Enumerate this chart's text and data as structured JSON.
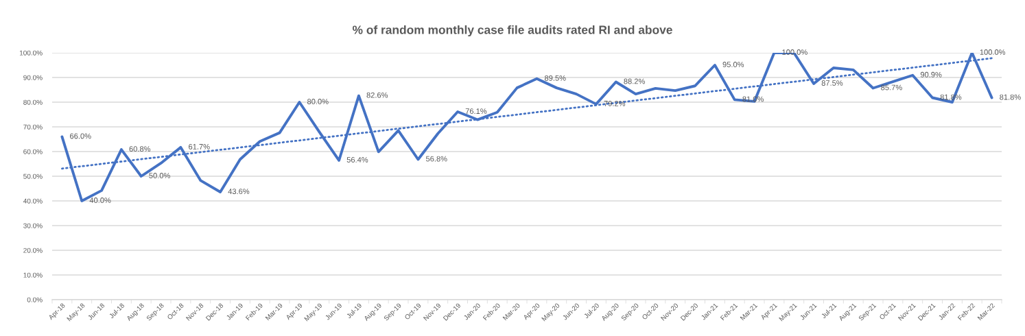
{
  "chart_data": {
    "type": "line",
    "title": "% of random monthly case file audits rated RI and above",
    "categories": [
      "Apr-18",
      "May-18",
      "Jun-18",
      "Jul-18",
      "Aug-18",
      "Sep-18",
      "Oct-18",
      "Nov-18",
      "Dec-18",
      "Jan-19",
      "Feb-19",
      "Mar-19",
      "Apr-19",
      "May-19",
      "Jun-19",
      "Jul-19",
      "Aug-19",
      "Sep-19",
      "Oct-19",
      "Nov-19",
      "Dec-19",
      "Jan-20",
      "Feb-20",
      "Mar-20",
      "Apr-20",
      "May-20",
      "Jun-20",
      "Jul-20",
      "Aug-20",
      "Sep-20",
      "Oct-20",
      "Nov-20",
      "Dec-20",
      "Jan-21",
      "Feb-21",
      "Mar-21",
      "Apr-21",
      "May-21",
      "Jun-21",
      "Jul-21",
      "Aug-21",
      "Sep-21",
      "Oct-21",
      "Nov-21",
      "Dec-21",
      "Jan-22",
      "Feb-22",
      "Mar-22"
    ],
    "series": [
      {
        "color": "#4472c4",
        "line_style": "solid",
        "values": [
          66.0,
          40.0,
          44.2,
          60.8,
          50.0,
          55.3,
          61.7,
          48.3,
          43.6,
          56.8,
          64.1,
          67.6,
          80.0,
          68.0,
          56.4,
          82.6,
          59.9,
          68.5,
          56.8,
          67.3,
          76.1,
          72.9,
          75.9,
          85.8,
          89.5,
          85.8,
          83.3,
          79.2,
          88.2,
          83.3,
          85.6,
          84.7,
          86.6,
          95.0,
          81.0,
          80.3,
          100.0,
          100.0,
          87.5,
          93.9,
          93.1,
          85.7,
          88.3,
          90.9,
          81.8,
          80.0,
          100.0,
          81.8
        ],
        "value_labels": [
          "66.0%",
          "40.0%",
          null,
          "60.8%",
          "50.0%",
          null,
          "61.7%",
          null,
          "43.6%",
          null,
          null,
          null,
          "80.0%",
          null,
          "56.4%",
          "82.6%",
          null,
          null,
          "56.8%",
          null,
          "76.1%",
          null,
          null,
          null,
          "89.5%",
          null,
          null,
          "79.2%",
          "88.2%",
          null,
          null,
          null,
          null,
          "95.0%",
          "81.0%",
          null,
          "100.0%",
          null,
          "87.5%",
          null,
          null,
          "85.7%",
          null,
          "90.9%",
          "81.8%",
          null,
          "100.0%",
          "81.8%"
        ]
      },
      {
        "type": "line",
        "color": "#4472c4",
        "line_style": "dotted",
        "x": [
          "Apr-18",
          "Mar-22"
        ],
        "values": [
          53.1,
          97.8
        ]
      }
    ],
    "ylim": [
      0,
      100
    ],
    "yticks": [
      {
        "value": 0,
        "label": "0.0%"
      },
      {
        "value": 10,
        "label": "10.0%"
      },
      {
        "value": 20,
        "label": "20.0%"
      },
      {
        "value": 30,
        "label": "30.0%"
      },
      {
        "value": 40,
        "label": "40.0%"
      },
      {
        "value": 50,
        "label": "50.0%"
      },
      {
        "value": 60,
        "label": "60.0%"
      },
      {
        "value": 70,
        "label": "70.0%"
      },
      {
        "value": 80,
        "label": "80.0%"
      },
      {
        "value": 90,
        "label": "90.0%"
      },
      {
        "value": 100,
        "label": "100.0%"
      }
    ],
    "grid": "y"
  }
}
